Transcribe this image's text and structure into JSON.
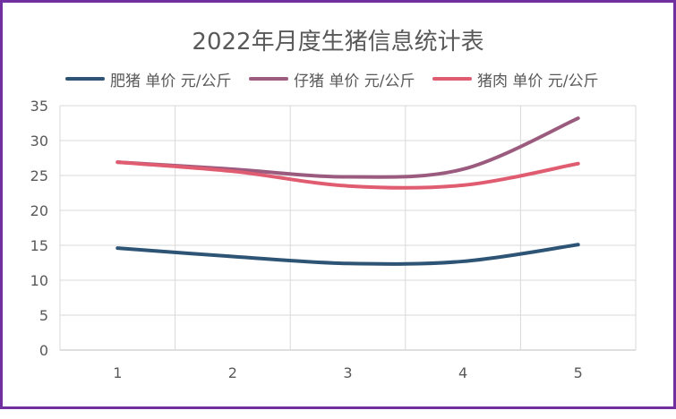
{
  "chart_data": {
    "type": "line",
    "title": "2022年月度生猪信息统计表",
    "categories": [
      "1",
      "2",
      "3",
      "4",
      "5"
    ],
    "ylim": [
      0,
      35
    ],
    "yticks": [
      "0",
      "5",
      "10",
      "15",
      "20",
      "25",
      "30",
      "35"
    ],
    "grid": true,
    "legend_position": "top",
    "series": [
      {
        "name": "肥猪 单价 元/公斤",
        "color": "#2e5475",
        "values": [
          14.6,
          13.4,
          12.4,
          12.7,
          15.1
        ]
      },
      {
        "name": "仔猪 单价 元/公斤",
        "color": "#9b5b7e",
        "values": [
          26.9,
          25.9,
          24.8,
          25.9,
          33.2
        ]
      },
      {
        "name": "猪肉 单价 元/公斤",
        "color": "#e05c70",
        "values": [
          26.9,
          25.6,
          23.5,
          23.6,
          26.7
        ]
      }
    ]
  }
}
